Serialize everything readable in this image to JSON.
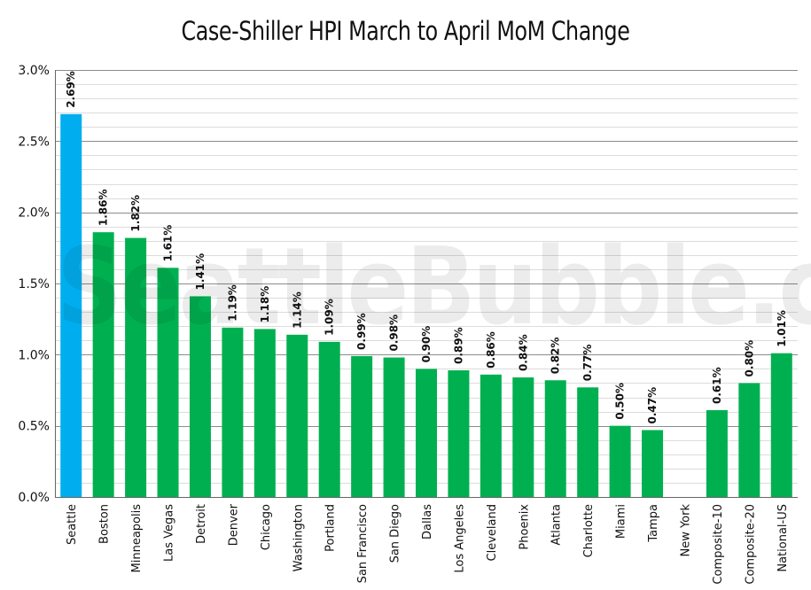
{
  "chart_data": {
    "type": "bar",
    "title": "Case-Shiller HPI March to April MoM Change",
    "categories": [
      "Seattle",
      "Boston",
      "Minneapolis",
      "Las Vegas",
      "Detroit",
      "Denver",
      "Chicago",
      "Washington",
      "Portland",
      "San Francisco",
      "San Diego",
      "Dallas",
      "Los Angeles",
      "Cleveland",
      "Phoenix",
      "Atlanta",
      "Charlotte",
      "Miami",
      "Tampa",
      "New York",
      "Composite-10",
      "Composite-20",
      "National-US"
    ],
    "values": [
      2.69,
      1.86,
      1.82,
      1.61,
      1.41,
      1.19,
      1.18,
      1.14,
      1.09,
      0.99,
      0.98,
      0.9,
      0.89,
      0.86,
      0.84,
      0.82,
      0.77,
      0.5,
      0.47,
      null,
      0.61,
      0.8,
      1.01
    ],
    "data_labels": [
      "2.69%",
      "1.86%",
      "1.82%",
      "1.61%",
      "1.41%",
      "1.19%",
      "1.18%",
      "1.14%",
      "1.09%",
      "0.99%",
      "0.98%",
      "0.90%",
      "0.89%",
      "0.86%",
      "0.84%",
      "0.82%",
      "0.77%",
      "0.50%",
      "0.47%",
      "",
      "0.61%",
      "0.80%",
      "1.01%"
    ],
    "y_ticks": [
      0,
      0.5,
      1.0,
      1.5,
      2.0,
      2.5,
      3.0
    ],
    "y_tick_labels": [
      "0.0%",
      "0.5%",
      "1.0%",
      "1.5%",
      "2.0%",
      "2.5%",
      "3.0%"
    ],
    "ylim": [
      0,
      3.0
    ],
    "grid": true,
    "xlabel": "",
    "ylabel": "",
    "colors": {
      "highlight": "#00aeef",
      "default": "#00b050"
    },
    "highlight_index": 0
  },
  "watermark": "SeattleBubble.com"
}
